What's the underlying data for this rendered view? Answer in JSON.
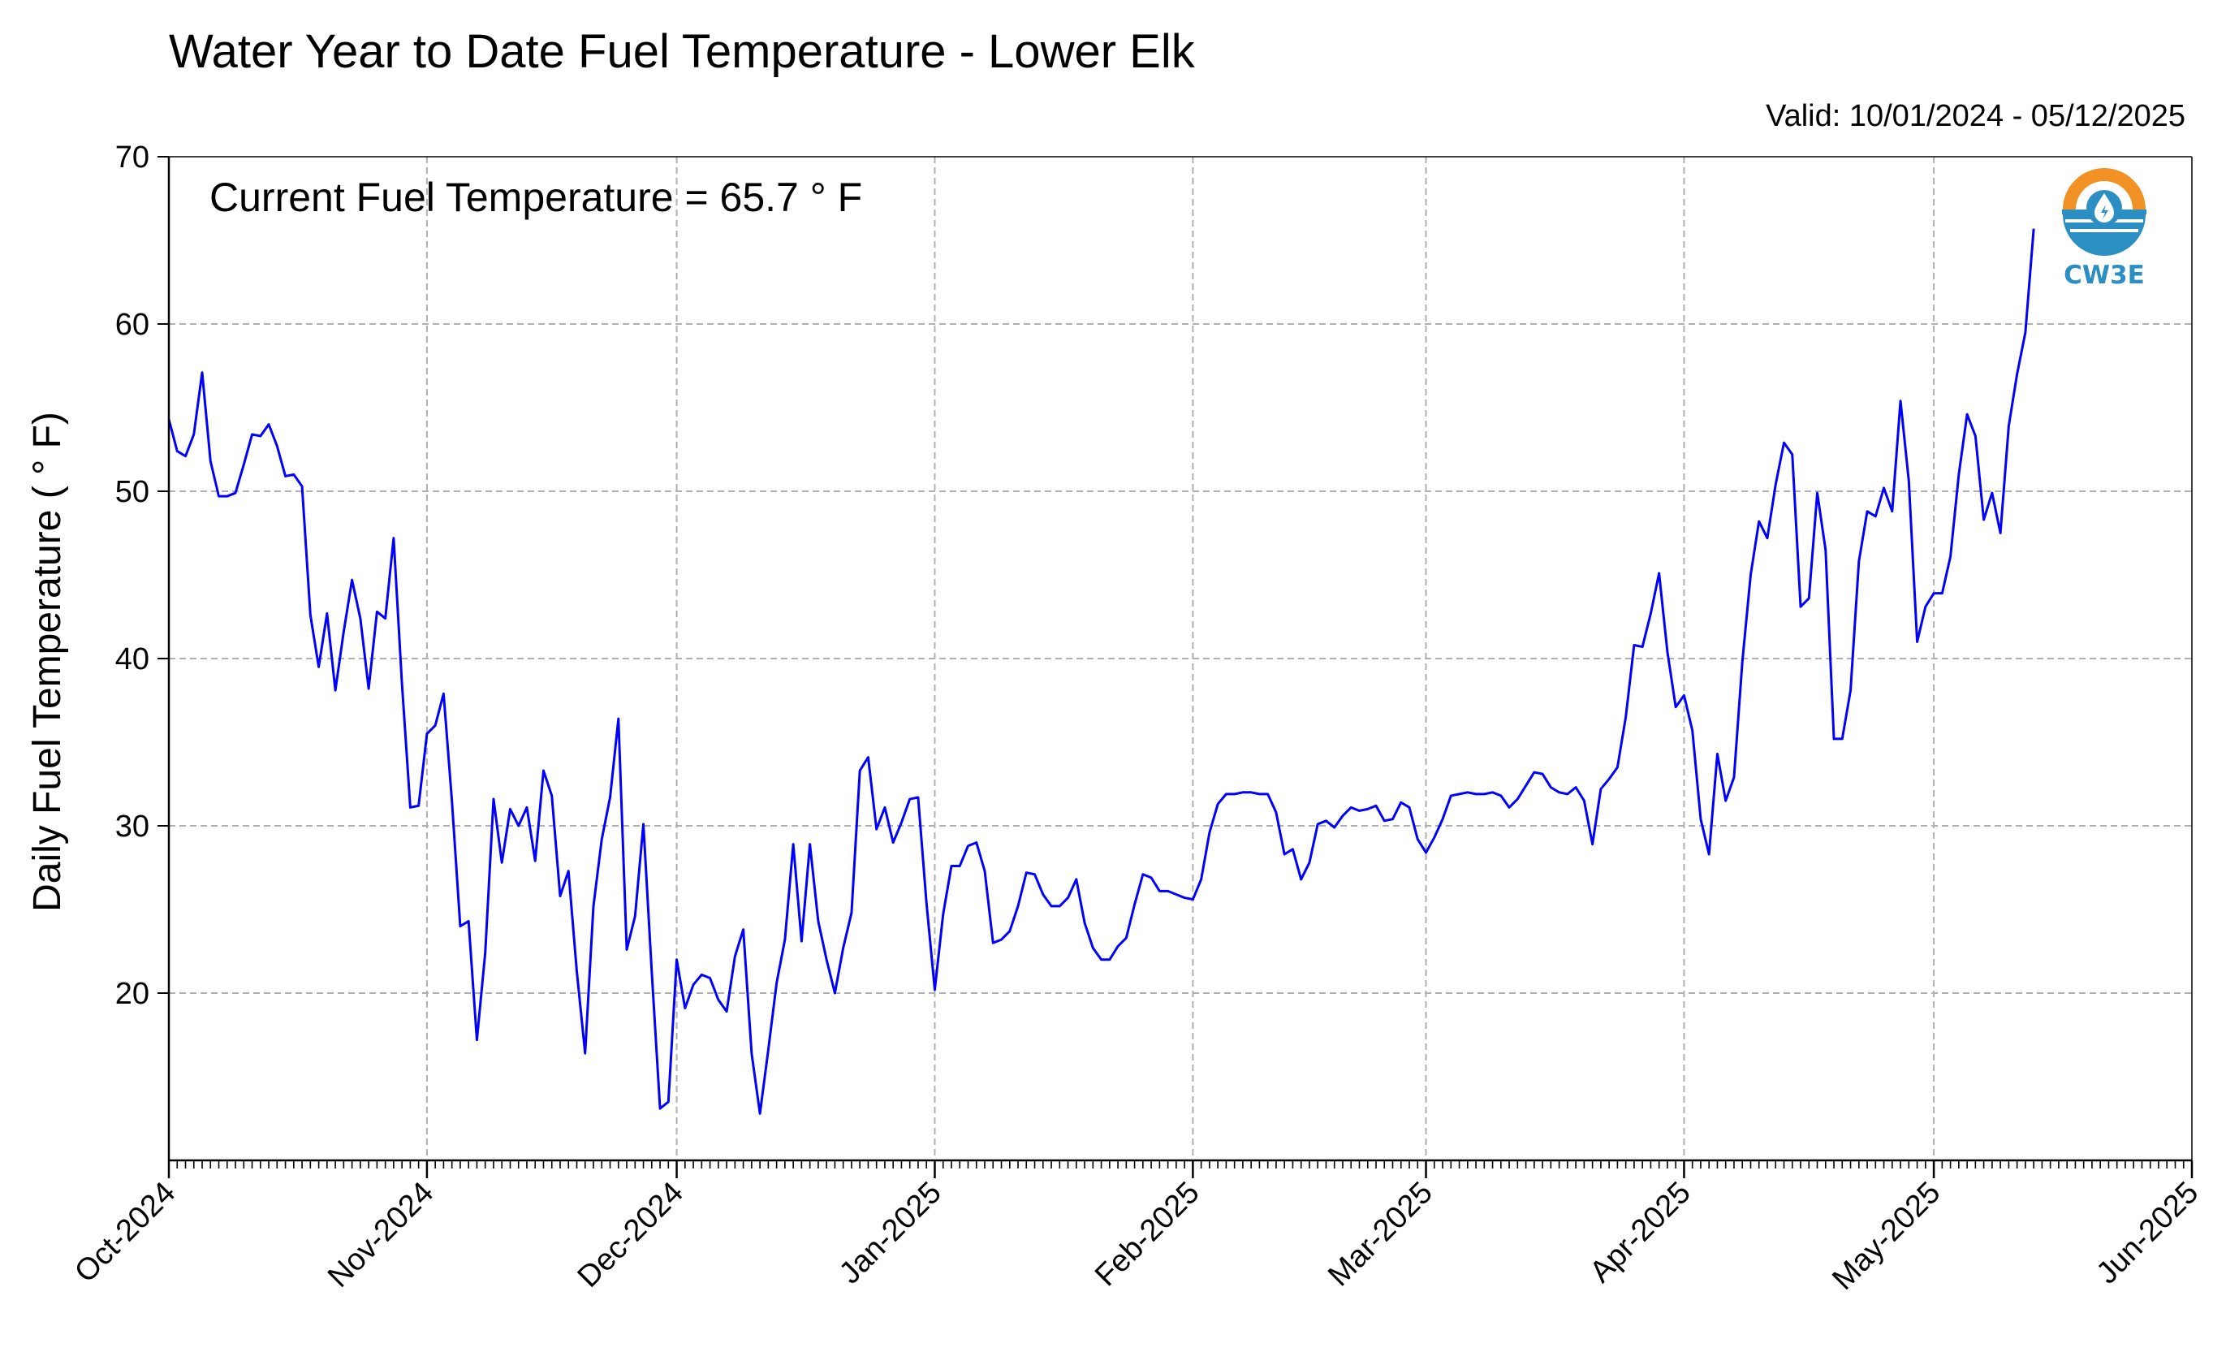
{
  "title": "Water Year to Date Fuel Temperature - Lower Elk",
  "valid_text": "Valid: 10/01/2024 - 05/12/2025",
  "logo": {
    "text": "CW3E",
    "icon": "cw3e-water-drop-icon",
    "colors": {
      "orange": "#f39224",
      "blue": "#2b8fc4"
    }
  },
  "chart_data": {
    "type": "line",
    "title": "Water Year to Date Fuel Temperature - Lower Elk",
    "xlabel": "",
    "ylabel": "Daily Fuel Temperature ($^\\circ$F)",
    "ylabel_display": "Daily Fuel Temperature ( ° F)",
    "annotation": "Current Fuel Temperature = 65.7  ° F",
    "x_start": "2024-10-01",
    "x_end": "2025-06-01",
    "x_range": [
      "2024-10-01",
      "2025-06-01"
    ],
    "ylim": [
      10,
      70
    ],
    "yticks": [
      20,
      30,
      40,
      50,
      60,
      70
    ],
    "xticks": [
      {
        "date": "2024-10-01",
        "label": "Oct-2024"
      },
      {
        "date": "2024-11-01",
        "label": "Nov-2024"
      },
      {
        "date": "2024-12-01",
        "label": "Dec-2024"
      },
      {
        "date": "2025-01-01",
        "label": "Jan-2025"
      },
      {
        "date": "2025-02-01",
        "label": "Feb-2025"
      },
      {
        "date": "2025-03-01",
        "label": "Mar-2025"
      },
      {
        "date": "2025-04-01",
        "label": "Apr-2025"
      },
      {
        "date": "2025-05-01",
        "label": "May-2025"
      },
      {
        "date": "2025-06-01",
        "label": "Jun-2025"
      }
    ],
    "grid": true,
    "line_color": "#0000ff",
    "series": [
      {
        "name": "",
        "values": [
          54.3,
          52.4,
          52.1,
          53.4,
          57.1,
          51.8,
          49.7,
          49.7,
          49.9,
          51.6,
          53.4,
          53.3,
          54.0,
          52.7,
          50.9,
          51.0,
          50.3,
          42.6,
          39.5,
          42.7,
          38.1,
          41.6,
          44.7,
          42.4,
          38.2,
          42.8,
          42.4,
          47.2,
          38.5,
          31.1,
          31.2,
          35.5,
          36.0,
          37.9,
          31.5,
          24.0,
          24.3,
          17.2,
          22.4,
          31.6,
          27.8,
          31.0,
          30.0,
          31.1,
          27.9,
          33.3,
          31.8,
          25.8,
          27.3,
          21.3,
          16.4,
          25.2,
          29.2,
          31.7,
          36.4,
          22.6,
          24.6,
          30.1,
          21.3,
          13.1,
          13.5,
          22.0,
          19.1,
          20.5,
          21.1,
          20.9,
          19.6,
          18.9,
          22.2,
          23.8,
          16.4,
          12.8,
          16.6,
          20.6,
          23.2,
          28.9,
          23.1,
          28.9,
          24.3,
          22.0,
          20.0,
          22.7,
          24.8,
          33.3,
          34.1,
          29.8,
          31.1,
          29.0,
          30.2,
          31.6,
          31.7,
          25.4,
          20.2,
          24.7,
          27.6,
          27.6,
          28.8,
          29.0,
          27.3,
          23.0,
          23.2,
          23.7,
          25.2,
          27.2,
          27.1,
          25.9,
          25.2,
          25.2,
          25.7,
          26.8,
          24.2,
          22.7,
          22.0,
          22.0,
          22.8,
          23.3,
          25.3,
          27.1,
          26.9,
          26.1,
          26.1,
          25.9,
          25.7,
          25.6,
          26.8,
          29.6,
          31.3,
          31.9,
          31.9,
          32.0,
          32.0,
          31.9,
          31.9,
          30.8,
          28.3,
          28.6,
          26.8,
          27.8,
          30.1,
          30.3,
          29.9,
          30.6,
          31.1,
          30.9,
          31.0,
          31.2,
          30.3,
          30.4,
          31.4,
          31.1,
          29.2,
          28.4,
          29.3,
          30.4,
          31.8,
          31.9,
          32.0,
          31.9,
          31.9,
          32.0,
          31.8,
          31.1,
          31.6,
          32.4,
          33.2,
          33.1,
          32.3,
          32.0,
          31.9,
          32.3,
          31.5,
          28.9,
          32.2,
          32.8,
          33.5,
          36.5,
          40.8,
          40.7,
          42.7,
          45.1,
          40.4,
          37.1,
          37.8,
          35.7,
          30.4,
          28.3,
          34.3,
          31.5,
          32.9,
          39.8,
          45.0,
          48.2,
          47.2,
          50.4,
          52.9,
          52.2,
          43.1,
          43.6,
          49.9,
          46.5,
          35.2,
          35.2,
          38.1,
          45.8,
          48.8,
          48.5,
          50.2,
          48.8,
          55.4,
          50.6,
          41.0,
          43.1,
          43.9,
          43.9,
          46.1,
          51.0,
          54.6,
          53.3,
          48.3,
          49.9,
          47.5,
          53.9,
          57.0,
          59.5,
          65.7
        ]
      }
    ]
  }
}
